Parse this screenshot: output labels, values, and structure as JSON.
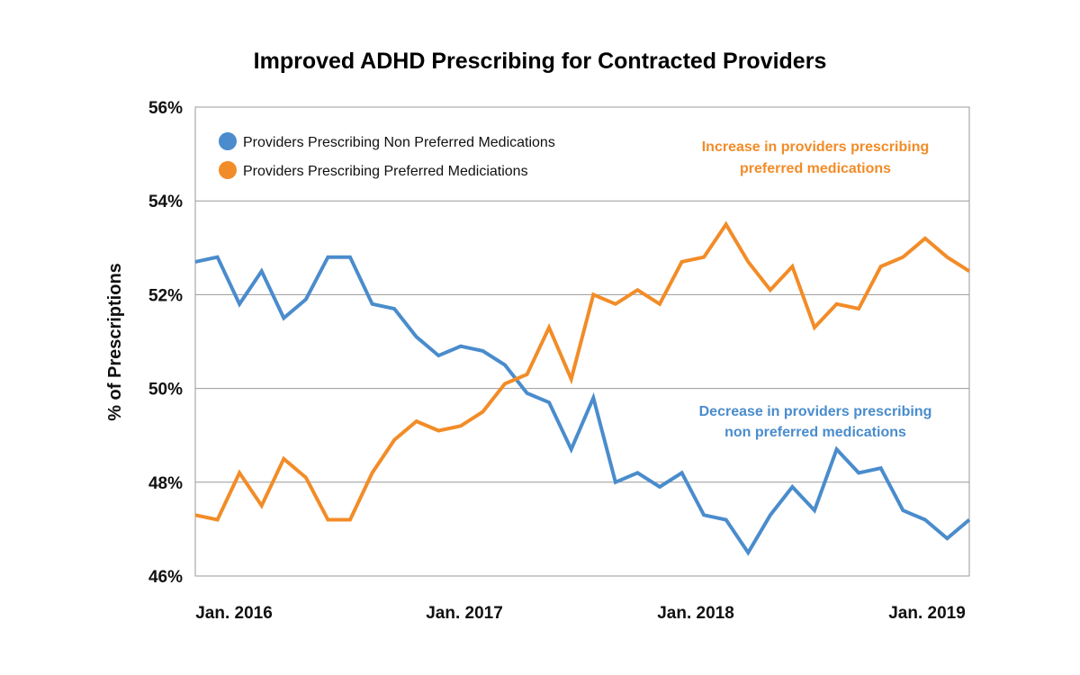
{
  "chart_data": {
    "type": "line",
    "title": "Improved ADHD Prescribing for Contracted Providers",
    "xlabel": "",
    "ylabel": "% of Prescriptions",
    "ylim": [
      46,
      56
    ],
    "yticks": [
      46,
      48,
      50,
      52,
      54,
      56
    ],
    "ytick_labels": [
      "46%",
      "48%",
      "50%",
      "52%",
      "54%",
      "56%"
    ],
    "xtick_labels": [
      "Jan. 2016",
      "Jan. 2017",
      "Jan. 2018",
      "Jan. 2019"
    ],
    "grid": true,
    "legend_position": "top-left",
    "series": [
      {
        "name": "Providers Prescribing Non Preferred Medications",
        "color": "#4a8ccc",
        "values": [
          52.7,
          52.8,
          51.8,
          52.5,
          51.5,
          51.9,
          52.8,
          52.8,
          51.8,
          51.7,
          51.1,
          50.7,
          50.9,
          50.8,
          50.5,
          49.9,
          49.7,
          48.7,
          49.8,
          48.0,
          48.2,
          47.9,
          48.2,
          47.3,
          47.2,
          46.5,
          47.3,
          47.9,
          47.4,
          48.7,
          48.2,
          48.3,
          47.4,
          47.2,
          46.8,
          47.2
        ]
      },
      {
        "name": "Providers Prescribing Preferred Mediciations",
        "color": "#f28c28",
        "values": [
          47.3,
          47.2,
          48.2,
          47.5,
          48.5,
          48.1,
          47.2,
          47.2,
          48.2,
          48.9,
          49.3,
          49.1,
          49.2,
          49.5,
          50.1,
          50.3,
          51.3,
          50.2,
          52.0,
          51.8,
          52.1,
          51.8,
          52.7,
          52.8,
          53.5,
          52.7,
          52.1,
          52.6,
          51.3,
          51.8,
          51.7,
          52.6,
          52.8,
          53.2,
          52.8,
          52.5
        ]
      }
    ],
    "annotations": [
      {
        "lines": [
          "Increase in providers prescribing",
          "preferred medications"
        ],
        "color": "#f28c28"
      },
      {
        "lines": [
          "Decrease in providers prescribing",
          "non preferred medications"
        ],
        "color": "#4a8ccc"
      }
    ]
  }
}
